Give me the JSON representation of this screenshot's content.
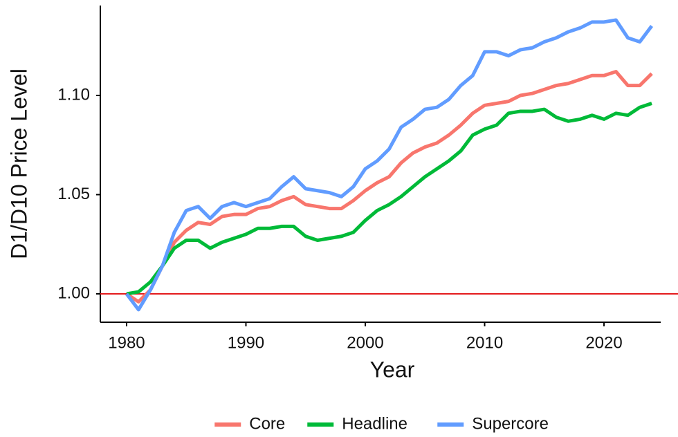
{
  "chart_data": {
    "type": "line",
    "x_label": "Year",
    "y_label": "D1/D10 Price Level",
    "x": [
      1980,
      1981,
      1982,
      1983,
      1984,
      1985,
      1986,
      1987,
      1988,
      1989,
      1990,
      1991,
      1992,
      1993,
      1994,
      1995,
      1996,
      1997,
      1998,
      1999,
      2000,
      2001,
      2002,
      2003,
      2004,
      2005,
      2006,
      2007,
      2008,
      2009,
      2010,
      2011,
      2012,
      2013,
      2014,
      2015,
      2016,
      2017,
      2018,
      2019,
      2020,
      2021,
      2022,
      2023,
      2024
    ],
    "series": [
      {
        "name": "Core",
        "color": "#f8766d",
        "values": [
          1.0,
          0.996,
          1.002,
          1.014,
          1.026,
          1.032,
          1.036,
          1.035,
          1.039,
          1.04,
          1.04,
          1.043,
          1.044,
          1.047,
          1.049,
          1.045,
          1.044,
          1.043,
          1.043,
          1.047,
          1.052,
          1.056,
          1.059,
          1.066,
          1.071,
          1.074,
          1.076,
          1.08,
          1.085,
          1.091,
          1.095,
          1.096,
          1.097,
          1.1,
          1.101,
          1.103,
          1.105,
          1.106,
          1.108,
          1.11,
          1.11,
          1.112,
          1.105,
          1.105,
          1.111
        ]
      },
      {
        "name": "Headline",
        "color": "#00ba38",
        "values": [
          1.0,
          1.001,
          1.006,
          1.014,
          1.023,
          1.027,
          1.027,
          1.023,
          1.026,
          1.028,
          1.03,
          1.033,
          1.033,
          1.034,
          1.034,
          1.029,
          1.027,
          1.028,
          1.029,
          1.031,
          1.037,
          1.042,
          1.045,
          1.049,
          1.054,
          1.059,
          1.063,
          1.067,
          1.072,
          1.08,
          1.083,
          1.085,
          1.091,
          1.092,
          1.092,
          1.093,
          1.089,
          1.087,
          1.088,
          1.09,
          1.088,
          1.091,
          1.09,
          1.094,
          1.096
        ]
      },
      {
        "name": "Supercore",
        "color": "#619cff",
        "values": [
          1.0,
          0.992,
          1.002,
          1.014,
          1.031,
          1.042,
          1.044,
          1.038,
          1.044,
          1.046,
          1.044,
          1.046,
          1.048,
          1.054,
          1.059,
          1.053,
          1.052,
          1.051,
          1.049,
          1.054,
          1.063,
          1.067,
          1.073,
          1.084,
          1.088,
          1.093,
          1.094,
          1.098,
          1.105,
          1.11,
          1.122,
          1.122,
          1.12,
          1.123,
          1.124,
          1.127,
          1.129,
          1.132,
          1.134,
          1.137,
          1.137,
          1.138,
          1.129,
          1.127,
          1.135
        ]
      }
    ],
    "xlim": [
      1977.8,
      2026.2
    ],
    "xticks": [
      1980,
      1990,
      2000,
      2010,
      2020
    ],
    "ylim": [
      0.9857,
      1.1453
    ],
    "yticks": [
      {
        "value": 1.0,
        "label": "1.00"
      },
      1.05,
      {
        "value": 1.1,
        "label": "1.10"
      }
    ],
    "reference_line": {
      "value": 1.0,
      "color": "#e41a1c"
    },
    "legend": "bottom"
  }
}
